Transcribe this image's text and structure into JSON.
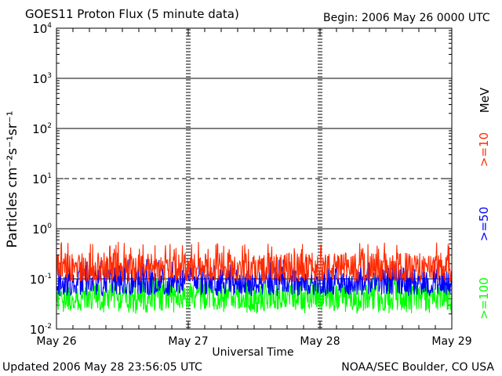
{
  "chart_data": {
    "type": "line",
    "title": "GOES11 Proton Flux (5 minute data)",
    "begin_label": "Begin: 2006 May 26 0000 UTC",
    "xlabel": "Universal Time",
    "ylabel": "Particles cm⁻²s⁻¹sr⁻¹",
    "x_tick_labels": [
      "May 26",
      "May 27",
      "May 28",
      "May 29"
    ],
    "x_range_days": [
      0,
      3
    ],
    "y_scale": "log",
    "ylim": [
      0.01,
      10000
    ],
    "y_tick_labels": [
      {
        "base": "10",
        "exp": "-2"
      },
      {
        "base": "10",
        "exp": "-1"
      },
      {
        "base": "10",
        "exp": "0"
      },
      {
        "base": "10",
        "exp": "1"
      },
      {
        "base": "10",
        "exp": "2"
      },
      {
        "base": "10",
        "exp": "3"
      },
      {
        "base": "10",
        "exp": "4"
      }
    ],
    "threshold_lines": {
      "solid": [
        0.1,
        1,
        100,
        1000
      ],
      "dashed": [
        10
      ]
    },
    "unit_label": "MeV",
    "series": [
      {
        "name": ">=10",
        "color": "#ff2a00",
        "typical": 0.17,
        "min": 0.09,
        "max": 0.55
      },
      {
        "name": ">=50",
        "color": "#0000ff",
        "typical": 0.09,
        "min": 0.045,
        "max": 0.25
      },
      {
        "name": ">=100",
        "color": "#00ff00",
        "typical": 0.045,
        "min": 0.02,
        "max": 0.11
      }
    ]
  },
  "footer": {
    "updated": "Updated 2006 May 28 23:56:05 UTC",
    "credit": "NOAA/SEC Boulder, CO USA"
  }
}
